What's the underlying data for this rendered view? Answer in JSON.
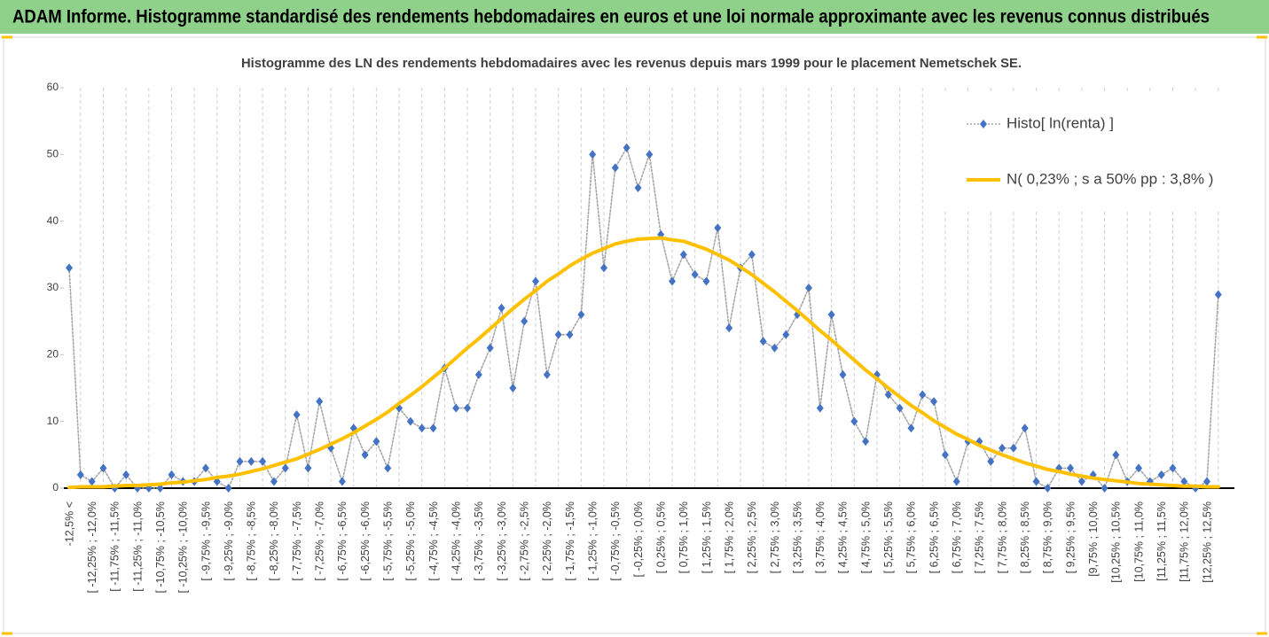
{
  "header": {
    "title": "ADAM Informe. Histogramme standardisé des rendements hebdomadaires en euros et une loi normale approximante avec les revenus connus distribués"
  },
  "chart_data": {
    "type": "line",
    "title": "Histogramme des LN des rendements hebdomadaires avec les revenus depuis mars 1999 pour le placement Nemetschek SE.",
    "categories": [
      "-12,5% <",
      null,
      "[ -12,25% ; -12,0%",
      null,
      "[ -11,75% ; -11,5%",
      null,
      "[ -11,25% ; -11,0%",
      null,
      "[ -10,75% ; -10,5%",
      null,
      "[ -10,25% ; -10,0%",
      null,
      "[ -9,75% ; -9,5%",
      null,
      "[ -9,25% ; -9,0%",
      null,
      "[ -8,75% ; -8,5%",
      null,
      "[ -8,25% ; -8,0%",
      null,
      "[ -7,75% ; -7,5%",
      null,
      "[ -7,25% ; -7,0%",
      null,
      "[ -6,75% ; -6,5%",
      null,
      "[ -6,25% ; -6,0%",
      null,
      "[ -5,75% ; -5,5%",
      null,
      "[ -5,25% ; -5,0%",
      null,
      "[ -4,75% ; -4,5%",
      null,
      "[ -4,25% ; -4,0%",
      null,
      "[ -3,75% ; -3,5%",
      null,
      "[ -3,25% ; -3,0%",
      null,
      "[ -2,75% ; -2,5%",
      null,
      "[ -2,25% ; -2,0%",
      null,
      "[ -1,75% ; -1,5%",
      null,
      "[ -1,25% ; -1,0%",
      null,
      "[ -0,75% ; -0,5%",
      null,
      "[ -0,25% ; 0,0%",
      null,
      "[ 0,25% ; 0,5%",
      null,
      "[ 0,75% ; 1,0%",
      null,
      "[ 1,25% ; 1,5%",
      null,
      "[ 1,75% ; 2,0%",
      null,
      "[ 2,25% ; 2,5%",
      null,
      "[ 2,75% ; 3,0%",
      null,
      "[ 3,25% ; 3,5%",
      null,
      "[ 3,75% ; 4,0%",
      null,
      "[ 4,25% ; 4,5%",
      null,
      "[ 4,75% ; 5,0%",
      null,
      "[ 5,25% ; 5,5%",
      null,
      "[ 5,75% ; 6,0%",
      null,
      "[ 6,25% ; 6,5%",
      null,
      "[ 6,75% ; 7,0%",
      null,
      "[ 7,25% ; 7,5%",
      null,
      "[ 7,75% ; 8,0%",
      null,
      "[ 8,25% ; 8,5%",
      null,
      "[ 8,75% ; 9,0%",
      null,
      "[ 9,25% ; 9,5%",
      null,
      "[9,75% ; 10,0%",
      null,
      "[10,25% ; 10,5%",
      null,
      "[10,75% ; 11,0%",
      null,
      "[11,25% ; 11,5%",
      null,
      "[11,75% ; 12,0%",
      null,
      "[12,25% ; 12,5%",
      null
    ],
    "series": [
      {
        "name": "Histo[ ln(renta) ]",
        "color": "#4472c4",
        "marker": "diamond",
        "line_color": "#a6a6a6",
        "line_style": "dotted",
        "values": [
          33,
          2,
          1,
          3,
          0,
          2,
          0,
          0,
          0,
          2,
          1,
          1,
          3,
          1,
          0,
          4,
          4,
          4,
          1,
          3,
          11,
          3,
          13,
          6,
          1,
          9,
          5,
          7,
          3,
          12,
          10,
          9,
          9,
          18,
          12,
          12,
          17,
          21,
          27,
          15,
          25,
          31,
          17,
          23,
          23,
          26,
          50,
          33,
          48,
          51,
          45,
          50,
          38,
          31,
          35,
          32,
          31,
          39,
          24,
          33,
          35,
          22,
          21,
          23,
          26,
          30,
          12,
          26,
          17,
          10,
          7,
          17,
          14,
          12,
          9,
          14,
          13,
          5,
          1,
          7,
          7,
          4,
          6,
          6,
          9,
          1,
          0,
          3,
          3,
          1,
          2,
          0,
          5,
          1,
          3,
          1,
          2,
          3,
          1,
          0,
          1,
          29
        ]
      },
      {
        "name": "N( 0,23% ; s a 50% pp : 3,8% )",
        "color": "#ffc000",
        "marker": "none",
        "line_color": "#ffc000",
        "line_style": "solid",
        "values": [
          0.1,
          0.2,
          0.2,
          0.2,
          0.3,
          0.4,
          0.4,
          0.5,
          0.6,
          0.8,
          0.9,
          1.1,
          1.3,
          1.6,
          1.8,
          2.1,
          2.5,
          2.9,
          3.4,
          3.9,
          4.4,
          5.1,
          5.8,
          6.6,
          7.4,
          8.3,
          9.3,
          10.3,
          11.4,
          12.7,
          13.9,
          15.2,
          16.6,
          18.0,
          19.5,
          21.0,
          22.4,
          23.9,
          25.4,
          26.9,
          28.3,
          29.6,
          31.0,
          32.1,
          33.3,
          34.3,
          35.2,
          35.9,
          36.6,
          37.0,
          37.3,
          37.4,
          37.5,
          37.2,
          37.0,
          36.4,
          35.8,
          35.0,
          34.2,
          33.1,
          32.0,
          30.7,
          29.4,
          28.0,
          26.6,
          25.1,
          23.6,
          22.2,
          20.7,
          19.2,
          17.7,
          16.4,
          15.0,
          13.7,
          12.4,
          11.3,
          10.1,
          9.1,
          8.1,
          7.3,
          6.4,
          5.7,
          5.0,
          4.4,
          3.8,
          3.3,
          2.8,
          2.5,
          2.1,
          1.8,
          1.5,
          1.3,
          1.1,
          0.9,
          0.7,
          0.6,
          0.5,
          0.4,
          0.3,
          0.3,
          0.2,
          0.2
        ]
      }
    ],
    "ylim": [
      0,
      60
    ],
    "yticks": [
      0,
      10,
      20,
      30,
      40,
      50,
      60
    ],
    "xgrid": true,
    "legend": "upper right"
  }
}
